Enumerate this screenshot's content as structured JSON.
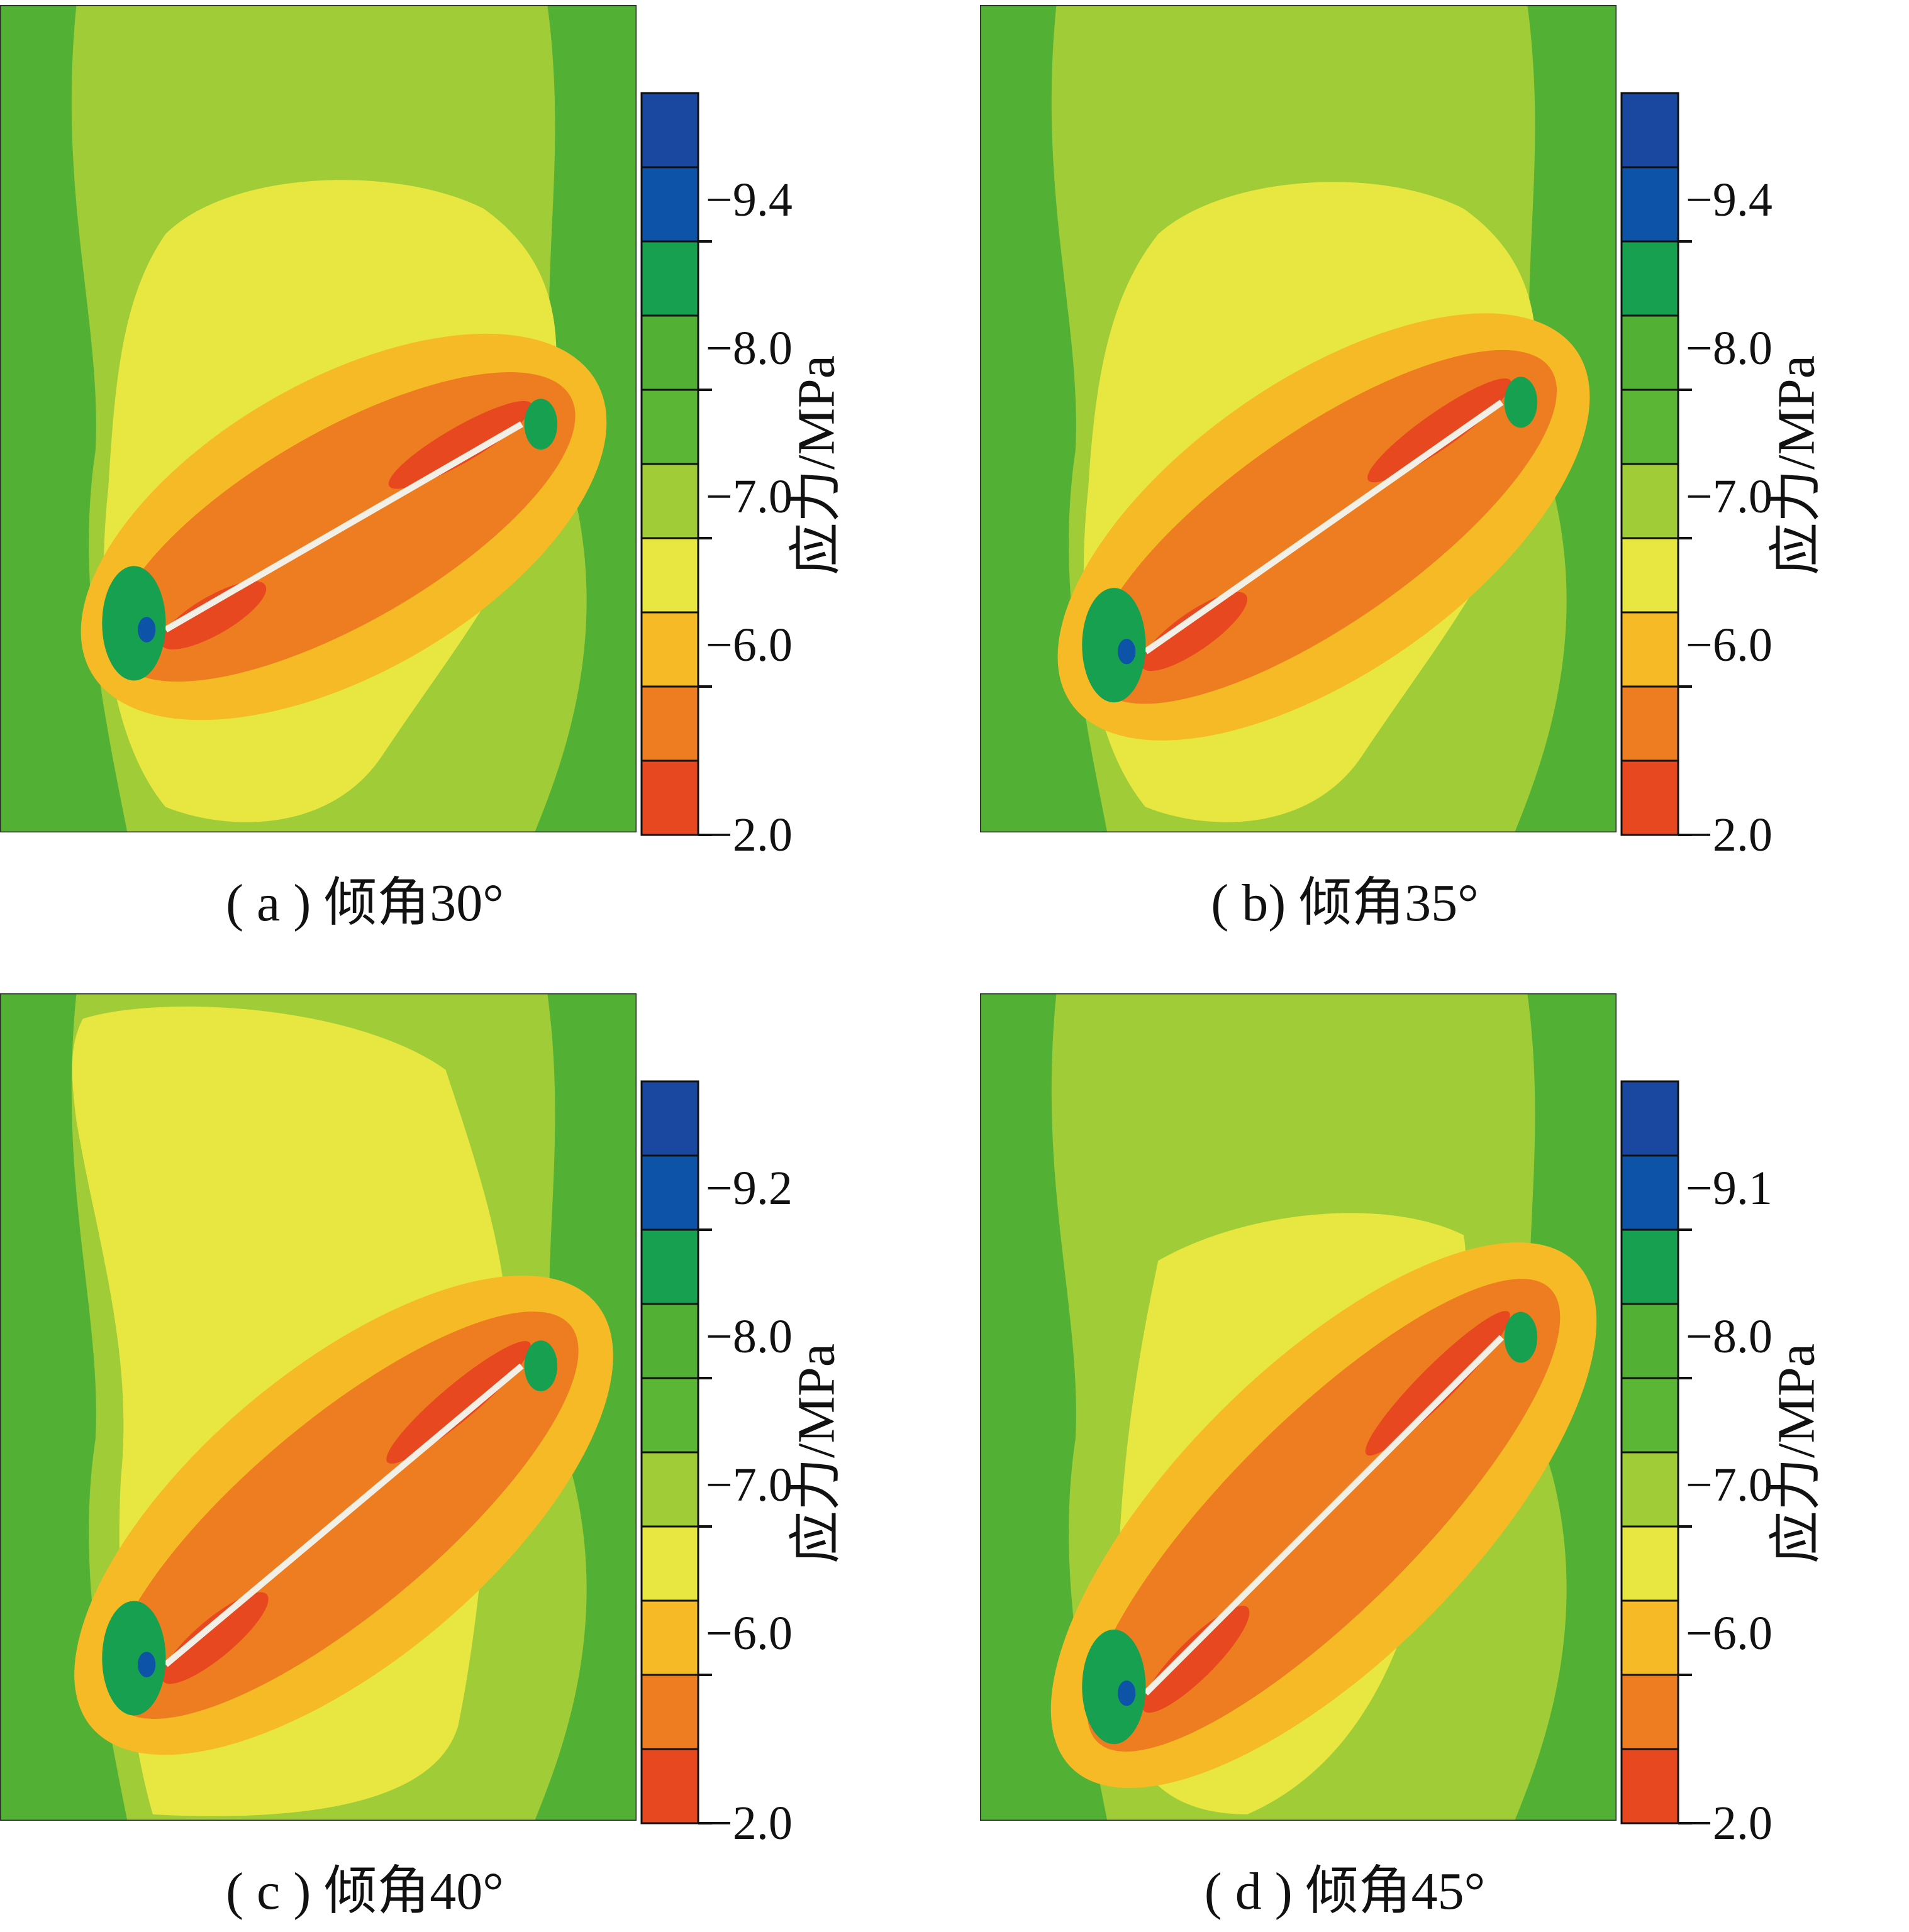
{
  "chart_data": [
    {
      "type": "heatmap",
      "caption": "( a ) 倾角30°",
      "dip_angle_deg": 30,
      "colorbar": {
        "label": "应力/MPa",
        "tick_labels": [
          "−9.4",
          "−8.0",
          "−7.0",
          "−6.0",
          "−2.0"
        ],
        "colors": [
          "#1a47a0",
          "#0d54a8",
          "#17a050",
          "#52b035",
          "#5cb635",
          "#9fcc37",
          "#e8e640",
          "#f5ba25",
          "#ee7c20",
          "#e84820"
        ]
      }
    },
    {
      "type": "heatmap",
      "caption": "( b) 倾角35°",
      "dip_angle_deg": 35,
      "colorbar": {
        "label": "应力/MPa",
        "tick_labels": [
          "−9.4",
          "−8.0",
          "−7.0",
          "−6.0",
          "−2.0"
        ],
        "colors": [
          "#1a47a0",
          "#0d54a8",
          "#17a050",
          "#52b035",
          "#5cb635",
          "#9fcc37",
          "#e8e640",
          "#f5ba25",
          "#ee7c20",
          "#e84820"
        ]
      }
    },
    {
      "type": "heatmap",
      "caption": "( c ) 倾角40°",
      "dip_angle_deg": 40,
      "colorbar": {
        "label": "应力/MPa",
        "tick_labels": [
          "−9.2",
          "−8.0",
          "−7.0",
          "−6.0",
          "−2.0"
        ],
        "colors": [
          "#1a47a0",
          "#0d54a8",
          "#17a050",
          "#52b035",
          "#5cb635",
          "#9fcc37",
          "#e8e640",
          "#f5ba25",
          "#ee7c20",
          "#e84820"
        ]
      }
    },
    {
      "type": "heatmap",
      "caption": "( d ) 倾角45°",
      "dip_angle_deg": 45,
      "colorbar": {
        "label": "应力/MPa",
        "tick_labels": [
          "−9.1",
          "−8.0",
          "−7.0",
          "−6.0",
          "−2.0"
        ],
        "colors": [
          "#1a47a0",
          "#0d54a8",
          "#17a050",
          "#52b035",
          "#5cb635",
          "#9fcc37",
          "#e8e640",
          "#f5ba25",
          "#ee7c20",
          "#e84820"
        ]
      }
    }
  ]
}
